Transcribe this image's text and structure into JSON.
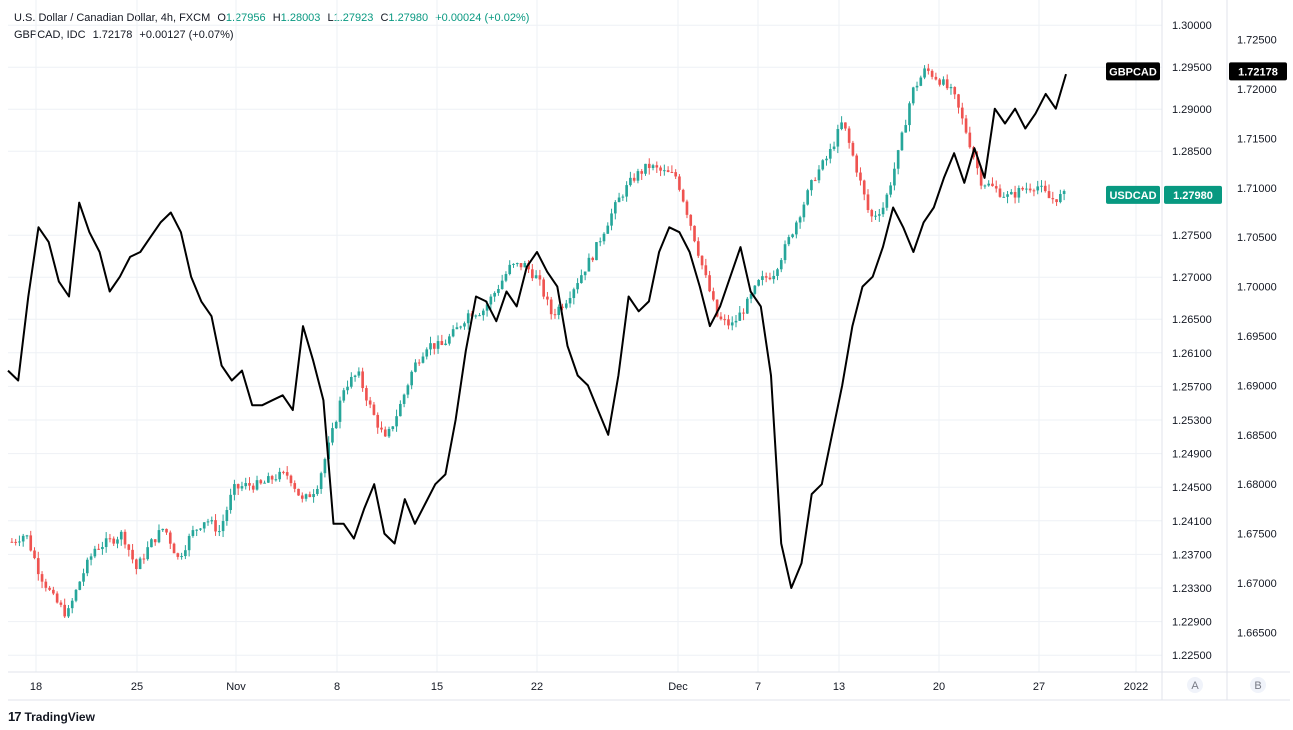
{
  "legend": {
    "main": {
      "symbol": "U.S. Dollar / Canadian Dollar, 4h, FXCM",
      "open_label": "O",
      "open": "1.27956",
      "high_label": "H",
      "high": "1.28003",
      "low_label": "L",
      "low": "1.27923",
      "close_label": "C",
      "close": "1.27980",
      "change": "+0.00024 (+0.02%)"
    },
    "compare": {
      "symbol": "GBPCAD, IDC",
      "value": "1.72178",
      "change": "+0.00127 (+0.07%)"
    }
  },
  "scale_buttons": {
    "a": "A",
    "b": "B"
  },
  "branding": {
    "logo_mark": "17",
    "logo_text": "TradingView"
  },
  "colors": {
    "up": "#26a69a",
    "down": "#ef5350",
    "overlay": "#000000",
    "grid": "#eef1f5",
    "usdcad_tag": "#089981",
    "gbpcad_tag": "#000000"
  },
  "chart_data": {
    "type": "candlestick",
    "timeframe": "4h",
    "x_ticks": [
      "18",
      "25",
      "Nov",
      "8",
      "15",
      "22",
      "Dec",
      "7",
      "13",
      "20",
      "27",
      "2022"
    ],
    "y_axis_b": {
      "label": "USDCAD",
      "range": [
        1.223,
        1.303
      ],
      "ticks": [
        "1.30000",
        "1.29500",
        "1.29000",
        "1.28500",
        "1.27500",
        "1.27000",
        "1.26500",
        "1.26100",
        "1.25700",
        "1.25300",
        "1.24900",
        "1.24500",
        "1.24100",
        "1.23700",
        "1.23300",
        "1.22900",
        "1.22500"
      ]
    },
    "y_axis_a": {
      "label": "GBPCAD",
      "range": [
        1.661,
        1.729
      ],
      "ticks": [
        "1.72500",
        "1.72000",
        "1.71500",
        "1.71000",
        "1.70500",
        "1.70000",
        "1.69500",
        "1.69000",
        "1.68500",
        "1.68000",
        "1.67500",
        "1.67000",
        "1.66500"
      ]
    },
    "series": [
      {
        "name": "USDCAD",
        "type": "candlestick",
        "last_value": "1.27980",
        "anchors": [
          [
            1.2375,
            1.2395
          ],
          [
            1.2385,
            1.2405
          ],
          [
            1.236,
            1.2335
          ],
          [
            1.233,
            1.2305
          ],
          [
            1.23,
            1.2295
          ],
          [
            1.233,
            1.2355
          ],
          [
            1.237,
            1.2385
          ],
          [
            1.238,
            1.239
          ],
          [
            1.2385,
            1.2405
          ],
          [
            1.236,
            1.2345
          ],
          [
            1.237,
            1.2395
          ],
          [
            1.24,
            1.2405
          ],
          [
            1.237,
            1.236
          ],
          [
            1.2385,
            1.2405
          ],
          [
            1.2405,
            1.242
          ],
          [
            1.241,
            1.2385
          ],
          [
            1.244,
            1.2455
          ],
          [
            1.2455,
            1.245
          ],
          [
            1.244,
            1.2465
          ],
          [
            1.247,
            1.2455
          ],
          [
            1.247,
            1.246
          ],
          [
            1.244,
            1.2425
          ],
          [
            1.244,
            1.246
          ],
          [
            1.248,
            1.253
          ],
          [
            1.256,
            1.258
          ],
          [
            1.258,
            1.259
          ],
          [
            1.2555,
            1.2525
          ],
          [
            1.251,
            1.25
          ],
          [
            1.253,
            1.256
          ],
          [
            1.2575,
            1.261
          ],
          [
            1.2615,
            1.2625
          ],
          [
            1.2625,
            1.261
          ],
          [
            1.262,
            1.265
          ],
          [
            1.265,
            1.2665
          ],
          [
            1.2665,
            1.2655
          ],
          [
            1.2675,
            1.2695
          ],
          [
            1.27,
            1.2725
          ],
          [
            1.272,
            1.271
          ],
          [
            1.2705,
            1.269
          ],
          [
            1.266,
            1.265
          ],
          [
            1.2665,
            1.268
          ],
          [
            1.269,
            1.271
          ],
          [
            1.2715,
            1.274
          ],
          [
            1.276,
            1.277
          ],
          [
            1.279,
            1.2805
          ],
          [
            1.2815,
            1.2825
          ],
          [
            1.283,
            1.2835
          ],
          [
            1.283,
            1.282
          ],
          [
            1.284,
            1.28
          ],
          [
            1.278,
            1.275
          ],
          [
            1.272,
            1.269
          ],
          [
            1.266,
            1.264
          ],
          [
            1.2635,
            1.265
          ],
          [
            1.266,
            1.267
          ],
          [
            1.269,
            1.27
          ],
          [
            1.27,
            1.271
          ],
          [
            1.273,
            1.275
          ],
          [
            1.277,
            1.279
          ],
          [
            1.28,
            1.284
          ],
          [
            1.284,
            1.285
          ],
          [
            1.287,
            1.29
          ],
          [
            1.286,
            1.28
          ],
          [
            1.278,
            1.276
          ],
          [
            1.278,
            1.279
          ],
          [
            1.283,
            1.286
          ],
          [
            1.29,
            1.294
          ],
          [
            1.295,
            1.2945
          ],
          [
            1.294,
            1.293
          ],
          [
            1.2915,
            1.292
          ],
          [
            1.289,
            1.285
          ],
          [
            1.282,
            1.281
          ],
          [
            1.281,
            1.28
          ],
          [
            1.28,
            1.279
          ],
          [
            1.281,
            1.28
          ],
          [
            1.282,
            1.28
          ],
          [
            1.279,
            1.2795
          ],
          [
            1.2796,
            1.2798
          ]
        ]
      },
      {
        "name": "GBPCAD",
        "type": "line",
        "last_value": "1.72178",
        "anchors": [
          1.6915,
          1.6905,
          1.699,
          1.706,
          1.7045,
          1.7005,
          1.699,
          1.7085,
          1.7055,
          1.7035,
          1.6995,
          1.701,
          1.703,
          1.7035,
          1.705,
          1.7065,
          1.7075,
          1.7055,
          1.701,
          1.6985,
          1.697,
          1.692,
          1.6905,
          1.6915,
          1.688,
          1.688,
          1.6885,
          1.689,
          1.6875,
          1.696,
          1.6925,
          1.6885,
          1.676,
          1.676,
          1.6745,
          1.6775,
          1.68,
          1.675,
          1.674,
          1.6785,
          1.676,
          1.678,
          1.68,
          1.681,
          1.6865,
          1.6935,
          1.699,
          1.6985,
          1.6965,
          1.6995,
          1.698,
          1.702,
          1.7035,
          1.7015,
          1.7,
          1.694,
          1.691,
          1.69,
          1.6875,
          1.685,
          1.691,
          1.699,
          1.6975,
          1.6985,
          1.7035,
          1.706,
          1.7055,
          1.7035,
          1.7,
          1.696,
          1.698,
          1.701,
          1.704,
          1.6995,
          1.698,
          1.691,
          1.674,
          1.6695,
          1.672,
          1.679,
          1.68,
          1.685,
          1.69,
          1.696,
          1.7,
          1.701,
          1.704,
          1.708,
          1.706,
          1.7035,
          1.7065,
          1.708,
          1.711,
          1.7135,
          1.7105,
          1.714,
          1.711,
          1.718,
          1.7165,
          1.718,
          1.716,
          1.7175,
          1.7195,
          1.718,
          1.7215
        ]
      }
    ]
  }
}
